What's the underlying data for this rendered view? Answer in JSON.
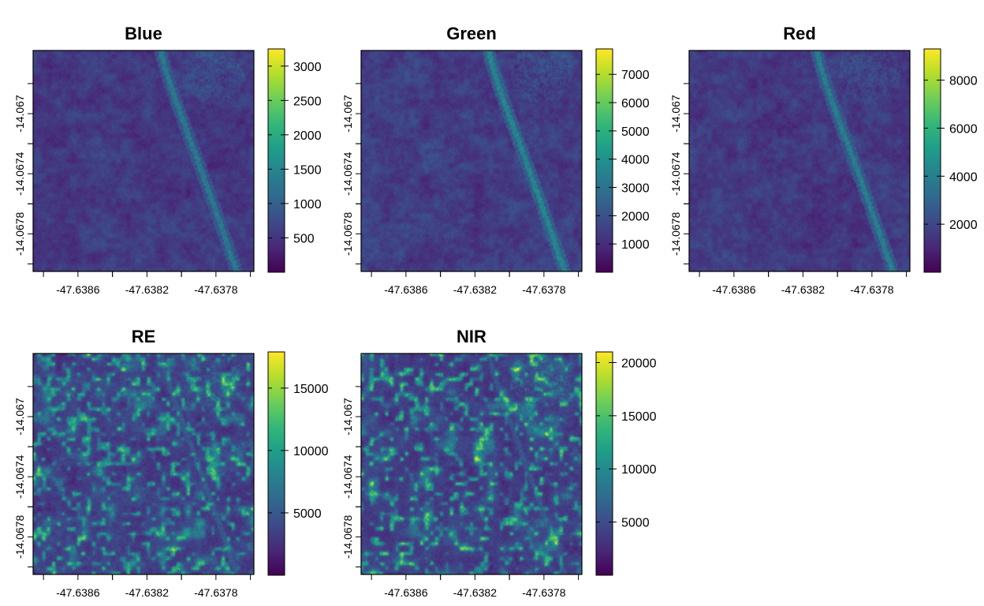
{
  "palette": [
    "#440154",
    "#482878",
    "#3e4989",
    "#31688e",
    "#26828e",
    "#1f9e89",
    "#35b779",
    "#6ece58",
    "#b5de2b",
    "#fde725"
  ],
  "chart_data": [
    {
      "type": "heatmap",
      "title": "Blue",
      "x_ticks": [
        -47.6386,
        -47.6382,
        -47.6378
      ],
      "x_tick_labels": [
        "-47.6386",
        "-47.6382",
        "-47.6378"
      ],
      "y_ticks": [
        -14.067,
        -14.0674,
        -14.0678
      ],
      "y_tick_labels": [
        "-14.067",
        "-14.0674",
        "-14.0678"
      ],
      "xlim": [
        -47.63886,
        -47.63758
      ],
      "ylim": [
        -14.06805,
        -14.06658
      ],
      "color_range": [
        0,
        3250
      ],
      "colorbar_ticks": [
        500,
        1000,
        1500,
        2000,
        2500,
        3000
      ],
      "colorbar_labels": [
        "500",
        "1000",
        "1500",
        "2000",
        "2500",
        "3000"
      ],
      "texture_level": 0.22,
      "road_level": 0.4,
      "highlight_level": 0.0
    },
    {
      "type": "heatmap",
      "title": "Green",
      "x_ticks": [
        -47.6386,
        -47.6382,
        -47.6378
      ],
      "x_tick_labels": [
        "-47.6386",
        "-47.6382",
        "-47.6378"
      ],
      "y_ticks": [
        -14.067,
        -14.0674,
        -14.0678
      ],
      "y_tick_labels": [
        "-14.067",
        "-14.0674",
        "-14.0678"
      ],
      "xlim": [
        -47.63886,
        -47.63758
      ],
      "ylim": [
        -14.06805,
        -14.06658
      ],
      "color_range": [
        0,
        7900
      ],
      "colorbar_ticks": [
        1000,
        2000,
        3000,
        4000,
        5000,
        6000,
        7000
      ],
      "colorbar_labels": [
        "1000",
        "2000",
        "3000",
        "4000",
        "5000",
        "6000",
        "7000"
      ],
      "texture_level": 0.24,
      "road_level": 0.45,
      "highlight_level": 0.0
    },
    {
      "type": "heatmap",
      "title": "Red",
      "x_ticks": [
        -47.6386,
        -47.6382,
        -47.6378
      ],
      "x_tick_labels": [
        "-47.6386",
        "-47.6382",
        "-47.6378"
      ],
      "y_ticks": [
        -14.067,
        -14.0674,
        -14.0678
      ],
      "y_tick_labels": [
        "-14.067",
        "-14.0674",
        "-14.0678"
      ],
      "xlim": [
        -47.63886,
        -47.63758
      ],
      "ylim": [
        -14.06805,
        -14.06658
      ],
      "color_range": [
        0,
        9300
      ],
      "colorbar_ticks": [
        2000,
        4000,
        6000,
        8000
      ],
      "colorbar_labels": [
        "2000",
        "4000",
        "6000",
        "8000"
      ],
      "texture_level": 0.22,
      "road_level": 0.42,
      "highlight_level": 0.0
    },
    {
      "type": "heatmap",
      "title": "RE",
      "x_ticks": [
        -47.6386,
        -47.6382,
        -47.6378
      ],
      "x_tick_labels": [
        "-47.6386",
        "-47.6382",
        "-47.6378"
      ],
      "y_ticks": [
        -14.067,
        -14.0674,
        -14.0678
      ],
      "y_tick_labels": [
        "-14.067",
        "-14.0674",
        "-14.0678"
      ],
      "xlim": [
        -47.63886,
        -47.63758
      ],
      "ylim": [
        -14.06805,
        -14.06658
      ],
      "color_range": [
        0,
        17900
      ],
      "colorbar_ticks": [
        5000,
        10000,
        15000
      ],
      "colorbar_labels": [
        "5000",
        "10000",
        "15000"
      ],
      "texture_level": 0.3,
      "road_level": 0.28,
      "highlight_level": 0.55
    },
    {
      "type": "heatmap",
      "title": "NIR",
      "x_ticks": [
        -47.6386,
        -47.6382,
        -47.6378
      ],
      "x_tick_labels": [
        "-47.6386",
        "-47.6382",
        "-47.6378"
      ],
      "y_ticks": [
        -14.067,
        -14.0674,
        -14.0678
      ],
      "y_tick_labels": [
        "-14.067",
        "-14.0674",
        "-14.0678"
      ],
      "xlim": [
        -47.63886,
        -47.63758
      ],
      "ylim": [
        -14.06805,
        -14.06658
      ],
      "color_range": [
        0,
        21000
      ],
      "colorbar_ticks": [
        5000,
        10000,
        15000,
        20000
      ],
      "colorbar_labels": [
        "5000",
        "10000",
        "15000",
        "20000"
      ],
      "texture_level": 0.3,
      "road_level": 0.26,
      "highlight_level": 0.6
    }
  ]
}
